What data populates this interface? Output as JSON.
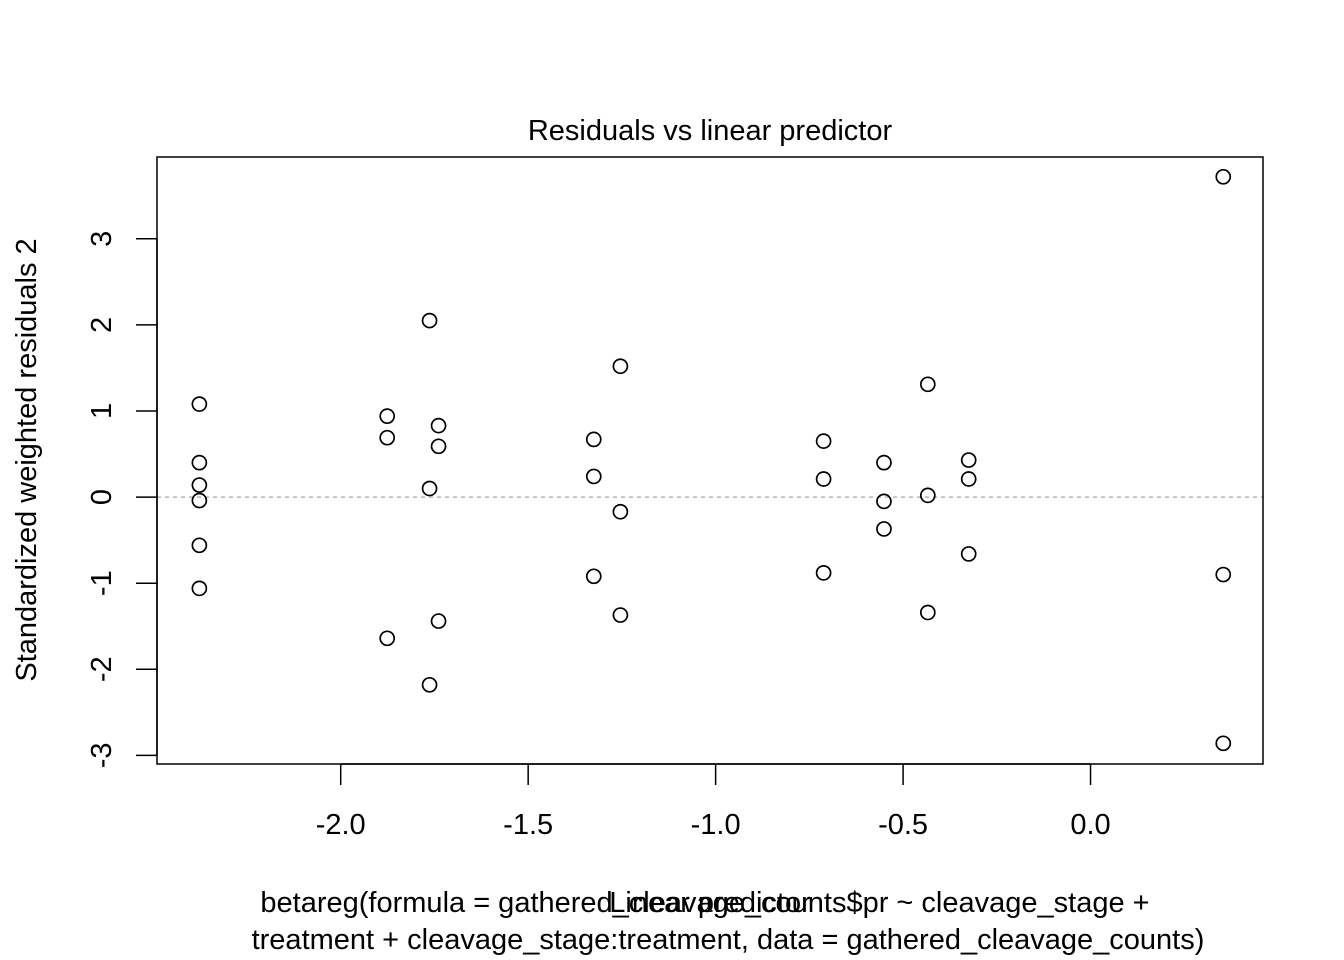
{
  "chart_data": {
    "type": "scatter",
    "title": "Residuals vs linear predictor",
    "xlabel": "Linear predictor",
    "ylabel": "Standardized weighted residuals 2",
    "caption": [
      "betareg(formula = gathered_cleavage_counts$pr ~ cleavage_stage +",
      "treatment + cleavage_stage:treatment, data = gathered_cleavage_counts)"
    ],
    "xlim": [
      -2.49,
      0.46
    ],
    "ylim": [
      -3.1,
      3.95
    ],
    "x_ticks": [
      -2.0,
      -1.5,
      -1.0,
      -0.5,
      0.0
    ],
    "x_tick_labels": [
      "-2.0",
      "-1.5",
      "-1.0",
      "-0.5",
      "0.0"
    ],
    "y_ticks": [
      -3,
      -2,
      -1,
      0,
      1,
      2,
      3
    ],
    "y_tick_labels": [
      "-3",
      "-2",
      "-1",
      "0",
      "1",
      "2",
      "3"
    ],
    "reference_line": {
      "y": 0,
      "style": "dotted",
      "color": "#b3b3b3"
    },
    "grid": false,
    "legend": "none",
    "marker": "open-circle",
    "points": [
      {
        "x": -2.377,
        "y": 1.08
      },
      {
        "x": -2.377,
        "y": 0.4
      },
      {
        "x": -2.377,
        "y": 0.14
      },
      {
        "x": -2.377,
        "y": -0.04
      },
      {
        "x": -2.377,
        "y": -0.56
      },
      {
        "x": -2.377,
        "y": -1.06
      },
      {
        "x": -1.876,
        "y": 0.94
      },
      {
        "x": -1.876,
        "y": 0.69
      },
      {
        "x": -1.876,
        "y": -1.64
      },
      {
        "x": -1.763,
        "y": 2.05
      },
      {
        "x": -1.763,
        "y": 0.1
      },
      {
        "x": -1.763,
        "y": -2.18
      },
      {
        "x": -1.739,
        "y": 0.83
      },
      {
        "x": -1.739,
        "y": 0.59
      },
      {
        "x": -1.739,
        "y": -1.44
      },
      {
        "x": -1.325,
        "y": 0.67
      },
      {
        "x": -1.325,
        "y": 0.24
      },
      {
        "x": -1.325,
        "y": -0.92
      },
      {
        "x": -1.254,
        "y": 1.52
      },
      {
        "x": -1.254,
        "y": -0.17
      },
      {
        "x": -1.254,
        "y": -1.37
      },
      {
        "x": -0.712,
        "y": 0.65
      },
      {
        "x": -0.712,
        "y": 0.21
      },
      {
        "x": -0.712,
        "y": -0.88
      },
      {
        "x": -0.551,
        "y": 0.4
      },
      {
        "x": -0.551,
        "y": -0.05
      },
      {
        "x": -0.551,
        "y": -0.37
      },
      {
        "x": -0.434,
        "y": 1.31
      },
      {
        "x": -0.434,
        "y": 0.02
      },
      {
        "x": -0.434,
        "y": -1.34
      },
      {
        "x": -0.325,
        "y": 0.43
      },
      {
        "x": -0.325,
        "y": 0.21
      },
      {
        "x": -0.325,
        "y": -0.66
      },
      {
        "x": 0.354,
        "y": 3.72
      },
      {
        "x": 0.354,
        "y": -0.9
      },
      {
        "x": 0.354,
        "y": -2.86
      }
    ]
  }
}
